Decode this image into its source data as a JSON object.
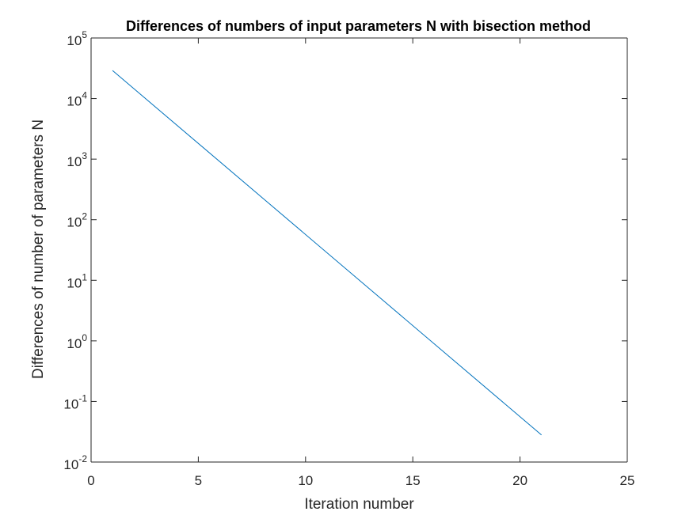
{
  "chart_data": {
    "type": "line",
    "title": "Differences of numbers of input parameters N with bisection method",
    "xlabel": "Iteration number",
    "ylabel": "Differences of number of parameters N",
    "xlim": [
      0,
      25
    ],
    "ylim": [
      0.01,
      100000
    ],
    "yscale": "log",
    "grid": false,
    "box": true,
    "x_ticks": [
      "0",
      "5",
      "10",
      "15",
      "20",
      "25"
    ],
    "y_ticks": [
      {
        "base": "10",
        "exp": "-2"
      },
      {
        "base": "10",
        "exp": "-1"
      },
      {
        "base": "10",
        "exp": "0"
      },
      {
        "base": "10",
        "exp": "1"
      },
      {
        "base": "10",
        "exp": "2"
      },
      {
        "base": "10",
        "exp": "3"
      },
      {
        "base": "10",
        "exp": "4"
      },
      {
        "base": "10",
        "exp": "5"
      }
    ],
    "series": [
      {
        "color": "#0072BD",
        "x": [
          1,
          21
        ],
        "y": [
          29000,
          0.028
        ]
      }
    ]
  }
}
